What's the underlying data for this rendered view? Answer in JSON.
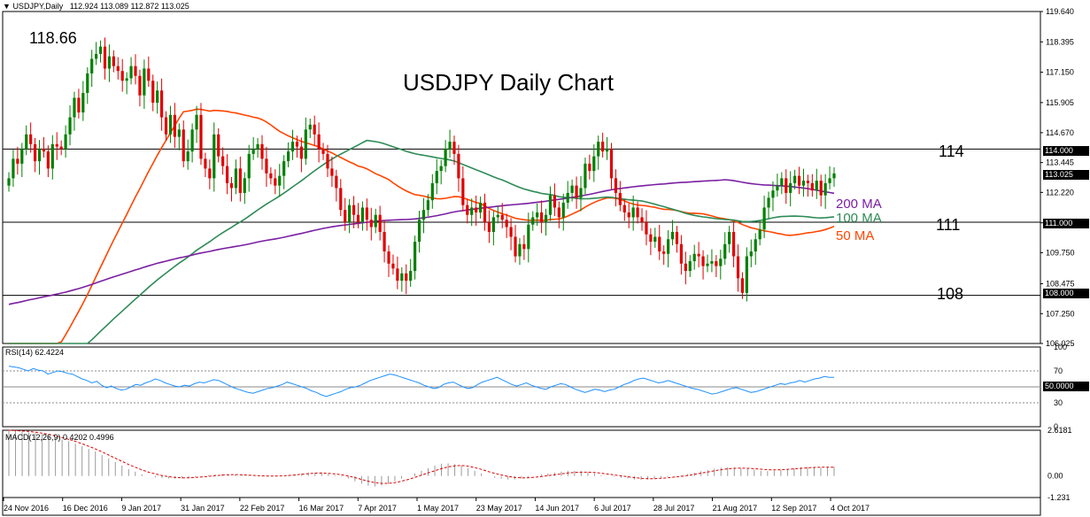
{
  "header": {
    "symbol": "USDJPY,Daily",
    "ohlc": "112.924 113.089 112.872 113.025"
  },
  "annotations": {
    "title": "USDJPY Daily Chart",
    "high_label": "118.66",
    "level_114": "114",
    "level_111": "111",
    "level_108": "108",
    "ma200": "200 MA",
    "ma100": "100 MA",
    "ma50": "50 MA"
  },
  "price_badges": {
    "current": "113.025",
    "h114": "114.000",
    "h111": "111.000",
    "h108": "108.000"
  },
  "rsi_header": "RSI(14) 62.4224",
  "rsi_badge": "50.0000",
  "macd_header": "MACD(12,26,9) 0.4202 0.4996",
  "colors": {
    "up": "#008000",
    "down": "#e00000",
    "ma200": "#7a1fa2",
    "ma100": "#2e8b57",
    "ma50": "#ff4500",
    "rsi": "#1e90ff",
    "macd_signal": "#e00000",
    "grid": "#000000",
    "badge_bg": "#000000",
    "badge_fg": "#ffffff"
  },
  "chart_data": {
    "type": "candlestick",
    "main": {
      "y_ticks": [
        "119.640",
        "118.395",
        "117.150",
        "115.905",
        "114.670",
        "113.445",
        "112.220",
        "110.975",
        "109.750",
        "108.475",
        "107.250",
        "106.025"
      ],
      "ylim": [
        106.025,
        119.64
      ],
      "horizontal_levels": [
        114.0,
        111.0,
        108.0
      ],
      "x_labels": [
        "24 Nov 2016",
        "16 Dec 2016",
        "9 Jan 2017",
        "31 Jan 2017",
        "22 Feb 2017",
        "16 Mar 2017",
        "7 Apr 2017",
        "1 May 2017",
        "23 May 2017",
        "14 Jun 2017",
        "6 Jul 2017",
        "28 Jul 2017",
        "21 Aug 2017",
        "12 Sep 2017",
        "4 Oct 2017"
      ],
      "closes": [
        112.8,
        113.6,
        113.4,
        114.0,
        114.6,
        114.2,
        113.5,
        114.0,
        113.9,
        113.2,
        114.2,
        114.1,
        114.0,
        114.6,
        115.3,
        116.1,
        115.5,
        116.3,
        117.1,
        117.7,
        117.9,
        118.2,
        117.3,
        117.8,
        117.4,
        117.2,
        116.8,
        116.9,
        117.4,
        117.0,
        116.2,
        117.3,
        116.8,
        115.9,
        116.4,
        115.3,
        114.6,
        115.4,
        114.5,
        114.8,
        113.5,
        113.9,
        114.8,
        115.4,
        113.6,
        113.2,
        112.8,
        114.6,
        113.7,
        113.3,
        112.6,
        112.4,
        113.2,
        112.2,
        112.8,
        113.8,
        114.0,
        114.2,
        113.6,
        113.0,
        112.8,
        112.5,
        112.9,
        113.5,
        113.9,
        114.3,
        114.1,
        113.6,
        114.8,
        115.0,
        114.6,
        114.0,
        113.8,
        113.2,
        112.9,
        112.4,
        111.5,
        111.0,
        111.7,
        111.3,
        111.0,
        111.6,
        111.1,
        110.8,
        111.3,
        110.6,
        109.8,
        109.3,
        109.1,
        108.6,
        108.9,
        108.6,
        109.0,
        110.2,
        111.1,
        111.5,
        111.9,
        112.6,
        113.1,
        113.3,
        114.0,
        114.3,
        113.8,
        112.8,
        111.7,
        111.3,
        111.6,
        111.4,
        111.8,
        111.0,
        110.6,
        111.2,
        111.3,
        111.1,
        110.8,
        110.4,
        109.6,
        110.1,
        109.9,
        110.9,
        111.2,
        111.4,
        111.0,
        111.3,
        112.1,
        111.6,
        111.2,
        111.8,
        112.2,
        112.5,
        112.0,
        112.4,
        113.4,
        113.1,
        113.7,
        114.3,
        113.9,
        114.0,
        112.8,
        112.2,
        111.7,
        111.4,
        111.2,
        111.6,
        111.2,
        111.0,
        110.5,
        110.2,
        110.4,
        109.8,
        109.7,
        110.3,
        110.6,
        110.1,
        109.3,
        109.0,
        109.4,
        109.7,
        109.6,
        109.2,
        109.3,
        109.4,
        109.2,
        109.5,
        110.1,
        110.6,
        109.6,
        108.7,
        108.1,
        109.6,
        109.8,
        110.3,
        110.7,
        111.6,
        112.0,
        112.3,
        112.5,
        112.8,
        112.2,
        112.6,
        112.9,
        112.5,
        112.7,
        112.6,
        112.3,
        112.7,
        112.1,
        112.6,
        112.8,
        113.0
      ]
    },
    "rsi": {
      "y_ticks": [
        "100",
        "70",
        "50",
        "30",
        "0"
      ],
      "ylim": [
        0,
        100
      ],
      "values": [
        76,
        75,
        74,
        72,
        70,
        73,
        71,
        70,
        66,
        68,
        70,
        69,
        67,
        66,
        63,
        60,
        58,
        55,
        57,
        52,
        49,
        51,
        48,
        46,
        47,
        50,
        53,
        52,
        55,
        57,
        60,
        58,
        55,
        53,
        51,
        50,
        52,
        51,
        54,
        56,
        55,
        57,
        59,
        58,
        55,
        52,
        49,
        47,
        45,
        43,
        42,
        44,
        46,
        48,
        49,
        51,
        53,
        56,
        54,
        52,
        50,
        48,
        45,
        43,
        40,
        38,
        40,
        42,
        44,
        47,
        49,
        50,
        52,
        55,
        58,
        60,
        62,
        64,
        66,
        65,
        63,
        61,
        59,
        57,
        55,
        52,
        50,
        48,
        49,
        53,
        55,
        56,
        53,
        50,
        48,
        49,
        53,
        56,
        58,
        60,
        62,
        59,
        56,
        53,
        51,
        53,
        55,
        52,
        50,
        48,
        47,
        50,
        52,
        54,
        53,
        50,
        47,
        45,
        43,
        45,
        47,
        46,
        44,
        46,
        47,
        50,
        53,
        55,
        58,
        60,
        61,
        59,
        57,
        55,
        56,
        58,
        56,
        54,
        52,
        50,
        48,
        47,
        45,
        43,
        41,
        42,
        44,
        46,
        48,
        49,
        47,
        45,
        43,
        44,
        46,
        48,
        50,
        52,
        54,
        53,
        55,
        56,
        58,
        56,
        58,
        60,
        61,
        63,
        62,
        62
      ]
    },
    "macd": {
      "y_ticks": [
        "2.6181",
        "0.00",
        "-1.231"
      ],
      "ylim": [
        -1.231,
        2.6181
      ],
      "histogram": [
        2.62,
        2.6,
        2.55,
        2.5,
        2.45,
        2.4,
        2.3,
        2.2,
        2.1,
        2.0,
        1.85,
        1.7,
        1.55,
        1.4,
        1.2,
        1.0,
        0.8,
        0.6,
        0.4,
        0.25,
        0.1,
        0.0,
        -0.08,
        -0.12,
        -0.15,
        -0.15,
        -0.14,
        -0.1,
        -0.05,
        0.0,
        0.05,
        0.08,
        0.1,
        0.1,
        0.08,
        0.05,
        0.02,
        0.0,
        -0.02,
        -0.02,
        0.0,
        0.02,
        0.05,
        0.1,
        0.15,
        0.2,
        0.2,
        0.18,
        0.12,
        0.05,
        -0.05,
        -0.15,
        -0.3,
        -0.45,
        -0.55,
        -0.6,
        -0.55,
        -0.45,
        -0.3,
        -0.15,
        0.0,
        0.15,
        0.3,
        0.45,
        0.6,
        0.7,
        0.72,
        0.68,
        0.6,
        0.45,
        0.3,
        0.15,
        0.0,
        -0.1,
        -0.15,
        -0.2,
        -0.2,
        -0.15,
        -0.1,
        0.0,
        0.1,
        0.15,
        0.2,
        0.25,
        0.3,
        0.3,
        0.28,
        0.22,
        0.15,
        0.05,
        0.0,
        -0.05,
        -0.1,
        -0.15,
        -0.2,
        -0.22,
        -0.2,
        -0.15,
        -0.1,
        -0.05,
        0.0,
        0.05,
        0.12,
        0.2,
        0.28,
        0.35,
        0.42,
        0.48,
        0.5,
        0.48,
        0.45,
        0.4,
        0.35,
        0.3,
        0.28,
        0.3,
        0.35,
        0.4,
        0.45,
        0.5,
        0.52,
        0.5,
        0.48,
        0.5,
        0.52
      ],
      "signal": [
        2.62,
        2.6,
        2.58,
        2.55,
        2.5,
        2.45,
        2.38,
        2.3,
        2.2,
        2.1,
        1.98,
        1.85,
        1.7,
        1.55,
        1.38,
        1.2,
        1.02,
        0.84,
        0.66,
        0.5,
        0.35,
        0.22,
        0.12,
        0.03,
        -0.04,
        -0.08,
        -0.1,
        -0.1,
        -0.08,
        -0.05,
        -0.02,
        0.02,
        0.05,
        0.07,
        0.08,
        0.07,
        0.05,
        0.03,
        0.01,
        0.0,
        0.0,
        0.01,
        0.03,
        0.06,
        0.1,
        0.13,
        0.16,
        0.17,
        0.15,
        0.12,
        0.07,
        0.0,
        -0.09,
        -0.2,
        -0.3,
        -0.38,
        -0.42,
        -0.42,
        -0.38,
        -0.3,
        -0.2,
        -0.08,
        0.05,
        0.18,
        0.3,
        0.42,
        0.52,
        0.58,
        0.6,
        0.56,
        0.48,
        0.38,
        0.26,
        0.15,
        0.06,
        -0.02,
        -0.08,
        -0.1,
        -0.1,
        -0.07,
        -0.03,
        0.02,
        0.07,
        0.12,
        0.17,
        0.2,
        0.22,
        0.22,
        0.2,
        0.16,
        0.11,
        0.06,
        0.01,
        -0.04,
        -0.09,
        -0.13,
        -0.15,
        -0.15,
        -0.13,
        -0.1,
        -0.06,
        -0.02,
        0.03,
        0.09,
        0.16,
        0.23,
        0.3,
        0.36,
        0.41,
        0.44,
        0.45,
        0.44,
        0.42,
        0.39,
        0.36,
        0.35,
        0.36,
        0.38,
        0.41,
        0.44,
        0.47,
        0.49,
        0.5,
        0.5,
        0.5
      ]
    }
  }
}
